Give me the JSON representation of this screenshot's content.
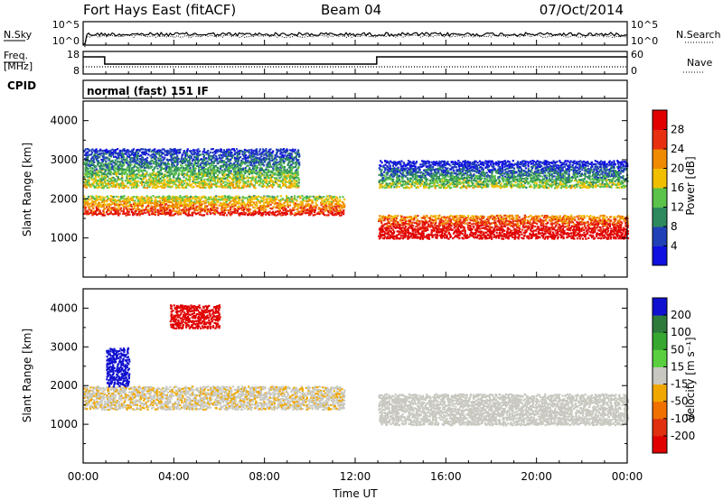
{
  "header": {
    "title": "Fort Hays East (fitACF)",
    "beam": "Beam 04",
    "date": "07/Oct/2014"
  },
  "noise_panel": {
    "left_label": "N.Sky",
    "right_label": "N.Search",
    "left_ticks": [
      "10^5",
      "10^0"
    ],
    "right_ticks": [
      "10^5",
      "10^0"
    ]
  },
  "freq_panel": {
    "left_label_1": "Freq.",
    "left_label_2": "[MHz]",
    "right_label": "Nave",
    "left_ticks": [
      "18",
      "8"
    ],
    "right_ticks": [
      "60",
      "0"
    ]
  },
  "cpid": {
    "label": "CPID",
    "value": "normal (fast) 151 IF"
  },
  "power_panel": {
    "ylabel": "Slant Range [km]",
    "yticks": [
      "1000",
      "2000",
      "3000",
      "4000"
    ],
    "colorbar_label": "Power [dB]",
    "colorbar_ticks": [
      "4",
      "8",
      "12",
      "16",
      "20",
      "24",
      "28"
    ],
    "colors": [
      "#1010e0",
      "#2040b8",
      "#2e8a5e",
      "#5bc24a",
      "#f0c000",
      "#f08a00",
      "#e83010",
      "#e00000"
    ]
  },
  "velocity_panel": {
    "ylabel": "Slant Range [km]",
    "yticks": [
      "1000",
      "2000",
      "3000",
      "4000"
    ],
    "colorbar_label": "Velocity [m s⁻¹]",
    "colorbar_ticks": [
      "200",
      "100",
      "50",
      "15",
      "-15",
      "-50",
      "-100",
      "-200"
    ],
    "colors": [
      "#1010d0",
      "#2e7a3a",
      "#36a830",
      "#5ad040",
      "#c8c8c0",
      "#f0a800",
      "#f07000",
      "#e03010",
      "#e00000"
    ]
  },
  "xaxis": {
    "label": "Time UT",
    "ticks": [
      "00:00",
      "04:00",
      "08:00",
      "12:00",
      "16:00",
      "20:00",
      "00:00"
    ]
  },
  "chart_data": [
    {
      "type": "heatmap",
      "title": "Power",
      "xlabel": "Time UT",
      "ylabel": "Slant Range [km]",
      "xlim": [
        0,
        24
      ],
      "ylim": [
        0,
        4500
      ],
      "colorbar": {
        "label": "Power [dB]",
        "range": [
          0,
          30
        ]
      },
      "echo_bands": [
        {
          "t_start": 0.0,
          "t_end": 11.5,
          "range_low": 1600,
          "range_high": 2100,
          "power_db": 20
        },
        {
          "t_start": 0.0,
          "t_end": 9.5,
          "range_low": 2300,
          "range_high": 3300,
          "power_db": 10
        },
        {
          "t_start": 13.0,
          "t_end": 24.0,
          "range_low": 1000,
          "range_high": 1600,
          "power_db": 26
        },
        {
          "t_start": 13.0,
          "t_end": 24.0,
          "range_low": 2300,
          "range_high": 3000,
          "power_db": 8
        }
      ]
    },
    {
      "type": "heatmap",
      "title": "Velocity",
      "xlabel": "Time UT",
      "ylabel": "Slant Range [km]",
      "xlim": [
        0,
        24
      ],
      "ylim": [
        0,
        4500
      ],
      "colorbar": {
        "label": "Velocity [m s⁻¹]",
        "range": [
          -200,
          200
        ]
      },
      "echo_bands": [
        {
          "t_start": 0.0,
          "t_end": 11.5,
          "range_low": 1400,
          "range_high": 2000,
          "velocity": -10
        },
        {
          "t_start": 1.0,
          "t_end": 2.0,
          "range_low": 2000,
          "range_high": 3000,
          "velocity": 200
        },
        {
          "t_start": 3.8,
          "t_end": 6.0,
          "range_low": 3500,
          "range_high": 4100,
          "velocity": -200
        },
        {
          "t_start": 13.0,
          "t_end": 24.0,
          "range_low": 1000,
          "range_high": 1800,
          "velocity": 0
        }
      ]
    }
  ]
}
